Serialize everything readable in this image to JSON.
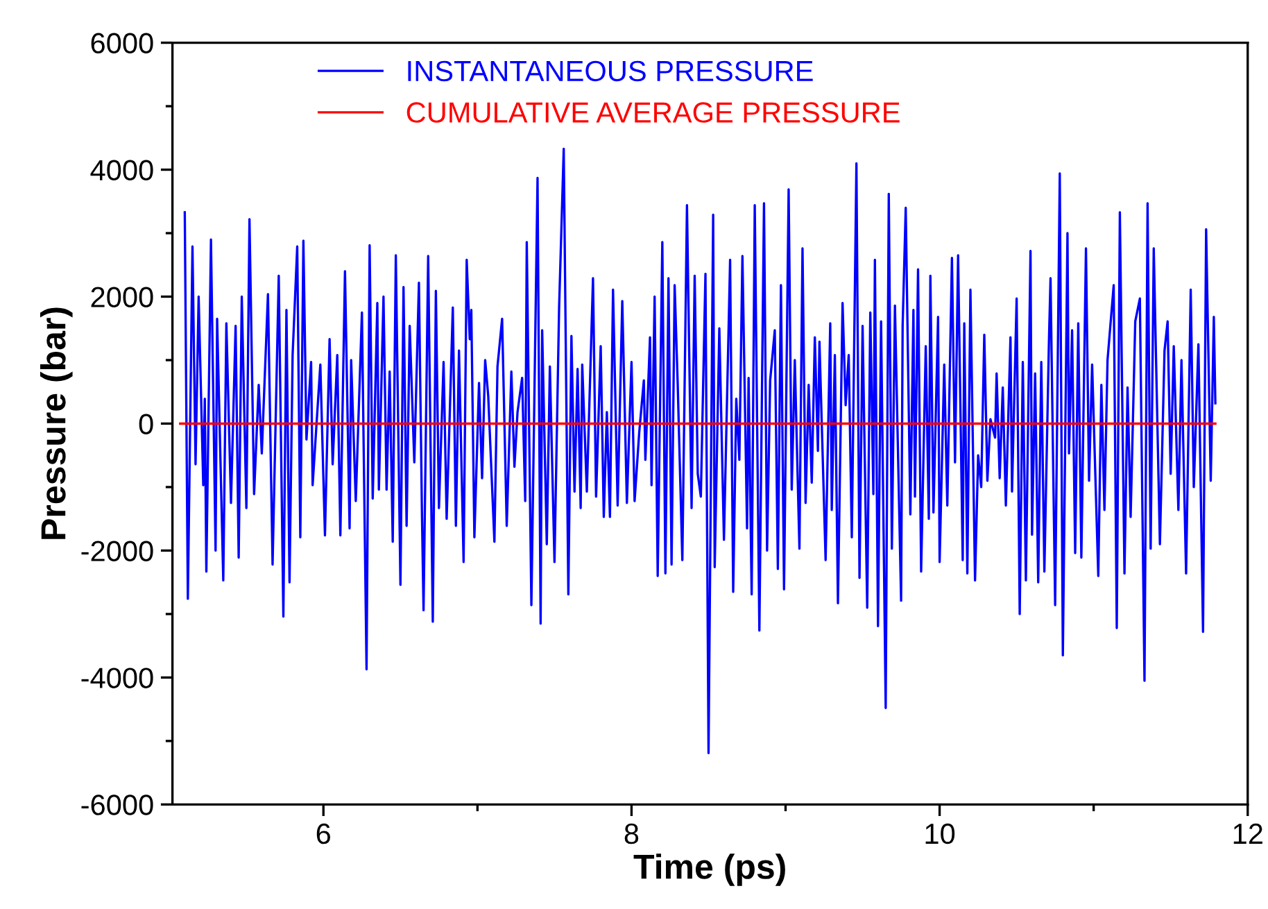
{
  "chart_data": {
    "type": "line",
    "xlabel": "Time (ps)",
    "ylabel": "Pressure (bar)",
    "xlim": [
      5.02,
      12
    ],
    "ylim": [
      -6000,
      6000
    ],
    "xticks": [
      6,
      {
        "value": 7,
        "label": null
      },
      8,
      {
        "value": 9,
        "label": null
      },
      10,
      {
        "value": 11,
        "label": null
      },
      12
    ],
    "yticks": [
      -6000,
      {
        "value": -5000,
        "label": null
      },
      -4000,
      {
        "value": -3000,
        "label": null
      },
      -2000,
      {
        "value": -1000,
        "label": null
      },
      0,
      {
        "value": 1000,
        "label": null
      },
      2000,
      {
        "value": 3000,
        "label": null
      },
      4000,
      {
        "value": 5000,
        "label": null
      },
      6000
    ],
    "grid": false,
    "legend": "top left",
    "marker": "none",
    "line_style": "solid",
    "series": [
      {
        "name": "INSTANTANEOUS PRESSURE",
        "color": "#0000ff",
        "x": [
          5.1,
          5.12,
          5.15,
          5.17,
          5.19,
          5.22,
          5.23,
          5.24,
          5.27,
          5.3,
          5.31,
          5.35,
          5.37,
          5.4,
          5.43,
          5.45,
          5.47,
          5.5,
          5.52,
          5.55,
          5.58,
          5.6,
          5.64,
          5.67,
          5.71,
          5.74,
          5.76,
          5.78,
          5.8,
          5.83,
          5.85,
          5.87,
          5.89,
          5.92,
          5.93,
          5.98,
          6.01,
          6.04,
          6.06,
          6.09,
          6.11,
          6.14,
          6.17,
          6.18,
          6.21,
          6.25,
          6.28,
          6.3,
          6.32,
          6.35,
          6.36,
          6.39,
          6.41,
          6.43,
          6.45,
          6.47,
          6.5,
          6.52,
          6.54,
          6.56,
          6.59,
          6.62,
          6.64,
          6.65,
          6.68,
          6.71,
          6.73,
          6.75,
          6.78,
          6.8,
          6.82,
          6.84,
          6.86,
          6.88,
          6.91,
          6.93,
          6.95,
          6.96,
          6.98,
          7.01,
          7.03,
          7.05,
          7.07,
          7.11,
          7.13,
          7.16,
          7.19,
          7.22,
          7.24,
          7.26,
          7.29,
          7.31,
          7.32,
          7.35,
          7.39,
          7.41,
          7.42,
          7.45,
          7.47,
          7.5,
          7.53,
          7.56,
          7.59,
          7.61,
          7.63,
          7.65,
          7.67,
          7.68,
          7.71,
          7.75,
          7.77,
          7.8,
          7.82,
          7.84,
          7.86,
          7.88,
          7.91,
          7.94,
          7.97,
          8.0,
          8.02,
          8.05,
          8.08,
          8.09,
          8.12,
          8.13,
          8.15,
          8.17,
          8.2,
          8.22,
          8.24,
          8.26,
          8.28,
          8.3,
          8.33,
          8.36,
          8.39,
          8.41,
          8.43,
          8.45,
          8.48,
          8.5,
          8.53,
          8.54,
          8.57,
          8.6,
          8.64,
          8.66,
          8.68,
          8.7,
          8.72,
          8.75,
          8.76,
          8.78,
          8.8,
          8.83,
          8.86,
          8.88,
          8.9,
          8.93,
          8.95,
          8.97,
          8.99,
          9.02,
          9.04,
          9.06,
          9.09,
          9.11,
          9.13,
          9.15,
          9.17,
          9.19,
          9.21,
          9.22,
          9.26,
          9.29,
          9.3,
          9.32,
          9.34,
          9.37,
          9.39,
          9.41,
          9.43,
          9.46,
          9.48,
          9.5,
          9.53,
          9.55,
          9.57,
          9.58,
          9.6,
          9.62,
          9.65,
          9.67,
          9.69,
          9.71,
          9.75,
          9.76,
          9.78,
          9.81,
          9.83,
          9.84,
          9.86,
          9.88,
          9.91,
          9.93,
          9.94,
          9.96,
          9.99,
          10.0,
          10.03,
          10.05,
          10.08,
          10.1,
          10.12,
          10.15,
          10.16,
          10.18,
          10.2,
          10.23,
          10.25,
          10.27,
          10.29,
          10.31,
          10.33,
          10.36,
          10.37,
          10.39,
          10.41,
          10.43,
          10.46,
          10.47,
          10.5,
          10.52,
          10.54,
          10.56,
          10.59,
          10.6,
          10.62,
          10.64,
          10.66,
          10.68,
          10.71,
          10.72,
          10.75,
          10.78,
          10.8,
          10.83,
          10.84,
          10.86,
          10.88,
          10.9,
          10.92,
          10.95,
          10.97,
          10.99,
          11.03,
          11.05,
          11.07,
          11.09,
          11.13,
          11.15,
          11.17,
          11.2,
          11.22,
          11.24,
          11.27,
          11.3,
          11.33,
          11.35,
          11.37,
          11.39,
          11.43,
          11.46,
          11.48,
          11.5,
          11.52,
          11.55,
          11.57,
          11.6,
          11.63,
          11.65,
          11.68,
          11.71,
          11.73,
          11.76,
          11.78,
          11.79
        ],
        "values": [
          3330,
          -2760,
          2790,
          -640,
          2000,
          -970,
          390,
          -2330,
          2900,
          -2000,
          1650,
          -2470,
          1580,
          -1250,
          1540,
          -2110,
          2000,
          -1330,
          3220,
          -1110,
          610,
          -470,
          2040,
          -2220,
          2330,
          -3040,
          1790,
          -2500,
          1080,
          2790,
          -1790,
          2880,
          -250,
          970,
          -970,
          930,
          -1760,
          1330,
          -640,
          1080,
          -1760,
          2400,
          -1650,
          1000,
          -1220,
          1750,
          -3870,
          2810,
          -1180,
          1900,
          -1040,
          2000,
          -1040,
          820,
          -1860,
          2650,
          -2540,
          2150,
          -1610,
          1540,
          -610,
          2220,
          -1470,
          -2940,
          2640,
          -3120,
          2090,
          -1330,
          970,
          -1500,
          140,
          1830,
          -1610,
          1150,
          -2180,
          2580,
          1330,
          1790,
          -1790,
          640,
          -860,
          1000,
          430,
          -1860,
          900,
          1650,
          -1610,
          820,
          -680,
          180,
          720,
          -1220,
          2860,
          -2860,
          3870,
          -3150,
          1470,
          -1900,
          900,
          -2180,
          1830,
          4330,
          -2690,
          1380,
          -1070,
          860,
          -1330,
          930,
          -1070,
          2290,
          -1150,
          1220,
          -1470,
          180,
          -1470,
          2110,
          -1290,
          1930,
          -1250,
          970,
          -1220,
          -140,
          680,
          -570,
          1360,
          -970,
          2000,
          -2400,
          2860,
          -2360,
          2290,
          -2220,
          2180,
          610,
          -2150,
          3440,
          -1330,
          2330,
          -790,
          -1150,
          2360,
          -5190,
          3290,
          -2260,
          1500,
          -1830,
          2580,
          -2650,
          390,
          -570,
          2640,
          -1650,
          720,
          -2690,
          3440,
          -3260,
          3470,
          -2000,
          680,
          1470,
          -2290,
          2180,
          -2610,
          3690,
          -1040,
          1000,
          -1970,
          2760,
          -1250,
          610,
          -930,
          1360,
          -430,
          1290,
          -2150,
          1580,
          -1360,
          1080,
          -2830,
          1900,
          290,
          1080,
          -1790,
          4100,
          -2430,
          1540,
          -2900,
          1750,
          -1110,
          2580,
          -3190,
          1610,
          -4480,
          3620,
          -1970,
          1860,
          -2790,
          1540,
          3400,
          -1430,
          1790,
          -1150,
          2430,
          -2330,
          1220,
          -1500,
          2330,
          -1400,
          1680,
          -2180,
          930,
          -1290,
          2610,
          -610,
          2650,
          -2150,
          1580,
          -2360,
          2110,
          -2470,
          -500,
          -1000,
          1400,
          -900,
          70,
          -220,
          790,
          -860,
          570,
          -1290,
          1360,
          -1070,
          1970,
          -3000,
          970,
          -2470,
          2720,
          -1750,
          790,
          -2500,
          970,
          -2330,
          1330,
          2290,
          -2860,
          3940,
          -3650,
          3000,
          -470,
          1470,
          -2040,
          1580,
          -2110,
          2760,
          -900,
          930,
          -2400,
          610,
          -1360,
          1000,
          2180,
          -3220,
          3330,
          -2360,
          570,
          -1470,
          1610,
          1970,
          -4050,
          3470,
          -1970,
          2760,
          -1900,
          1150,
          1610,
          -790,
          1220,
          -1360,
          1000,
          -2360,
          2110,
          -1000,
          1250,
          -3280,
          3060,
          -900,
          1680,
          320
        ]
      },
      {
        "name": "CUMULATIVE AVERAGE PRESSURE",
        "color": "#ff0000",
        "x": [
          5.07,
          11.79
        ],
        "values": [
          0,
          0
        ]
      }
    ]
  }
}
